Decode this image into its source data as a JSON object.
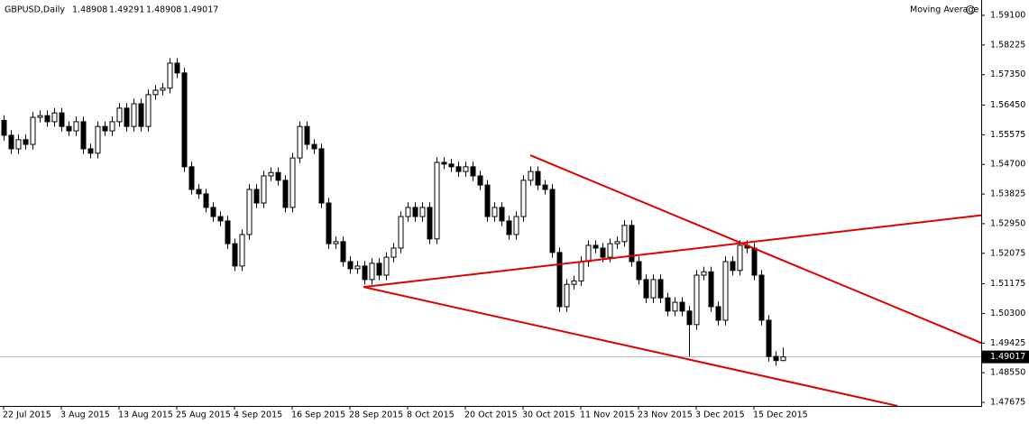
{
  "chart_data": {
    "type": "candlestick",
    "title": "GBPUSD,Daily",
    "header_ohlc": [
      1.48908,
      1.49291,
      1.48908,
      1.49017
    ],
    "indicator": "Moving Average",
    "categories": [
      "22 Jul 2015",
      null,
      null,
      null,
      null,
      null,
      null,
      null,
      "3 Aug 2015",
      null,
      null,
      null,
      null,
      null,
      null,
      null,
      "13 Aug 2015",
      null,
      null,
      null,
      null,
      null,
      null,
      null,
      "25 Aug 2015",
      null,
      null,
      null,
      null,
      null,
      null,
      null,
      "4 Sep 2015",
      null,
      null,
      null,
      null,
      null,
      null,
      null,
      "16 Sep 2015",
      null,
      null,
      null,
      null,
      null,
      null,
      null,
      "28 Sep 2015",
      null,
      null,
      null,
      null,
      null,
      null,
      null,
      "8 Oct 2015",
      null,
      null,
      null,
      null,
      null,
      null,
      null,
      "20 Oct 2015",
      null,
      null,
      null,
      null,
      null,
      null,
      null,
      "30 Oct 2015",
      null,
      null,
      null,
      null,
      null,
      null,
      null,
      "11 Nov 2015",
      null,
      null,
      null,
      null,
      null,
      null,
      null,
      "23 Nov 2015",
      null,
      null,
      null,
      null,
      null,
      null,
      null,
      "3 Dec 2015",
      null,
      null,
      null,
      null,
      null,
      null,
      null,
      "15 Dec 2015",
      null,
      null,
      null,
      null
    ],
    "open": [
      1.56,
      1.5556,
      1.5516,
      1.5543,
      1.5529,
      1.5609,
      1.5614,
      1.5596,
      1.5622,
      1.5582,
      1.5569,
      1.5596,
      1.5516,
      1.5503,
      1.5582,
      1.5569,
      1.5596,
      1.5636,
      1.5582,
      1.5649,
      1.5582,
      1.5676,
      1.5689,
      1.5695,
      1.5769,
      1.574,
      1.5463,
      1.5396,
      1.5383,
      1.5343,
      1.5316,
      1.5303,
      1.5236,
      1.517,
      1.5263,
      1.5396,
      1.5356,
      1.5436,
      1.5446,
      1.5423,
      1.5343,
      1.5489,
      1.5582,
      1.5529,
      1.5516,
      1.5356,
      1.5236,
      1.5242,
      1.5183,
      1.5162,
      1.517,
      1.513,
      1.5178,
      1.5143,
      1.5196,
      1.5223,
      1.5316,
      1.5343,
      1.5316,
      1.5343,
      1.525,
      1.5476,
      1.5471,
      1.5463,
      1.5449,
      1.5463,
      1.5436,
      1.5409,
      1.5316,
      1.5343,
      1.5303,
      1.5263,
      1.5316,
      1.5423,
      1.5449,
      1.5409,
      1.5396,
      1.521,
      1.505,
      1.5116,
      1.5126,
      1.5183,
      1.5231,
      1.5223,
      1.5196,
      1.5236,
      1.5242,
      1.529,
      1.5183,
      1.513,
      1.5076,
      1.513,
      1.5076,
      1.5037,
      1.5063,
      1.5037,
      1.4997,
      1.5143,
      1.5153,
      1.505,
      1.501,
      1.5183,
      1.5157,
      1.5231,
      1.5223,
      1.5143,
      1.501,
      1.4903,
      1.48908
    ],
    "high": [
      1.5615,
      1.5571,
      1.5558,
      1.5558,
      1.5624,
      1.5629,
      1.5629,
      1.5637,
      1.5637,
      1.5597,
      1.5611,
      1.5611,
      1.5531,
      1.5597,
      1.5597,
      1.5611,
      1.5651,
      1.5651,
      1.5664,
      1.5664,
      1.5691,
      1.5704,
      1.571,
      1.5784,
      1.5784,
      1.5755,
      1.5478,
      1.5411,
      1.5398,
      1.5358,
      1.5331,
      1.5318,
      1.5251,
      1.5278,
      1.5411,
      1.5411,
      1.5451,
      1.5461,
      1.5461,
      1.5438,
      1.5504,
      1.5597,
      1.5597,
      1.5544,
      1.5531,
      1.5371,
      1.5257,
      1.5257,
      1.5198,
      1.5185,
      1.5185,
      1.5193,
      1.5193,
      1.5211,
      1.5238,
      1.5331,
      1.5358,
      1.5358,
      1.5358,
      1.5358,
      1.5491,
      1.5491,
      1.5486,
      1.5478,
      1.5478,
      1.5478,
      1.5451,
      1.5424,
      1.5358,
      1.5358,
      1.5318,
      1.5331,
      1.5438,
      1.5464,
      1.5464,
      1.5424,
      1.5411,
      1.5225,
      1.5131,
      1.5141,
      1.5198,
      1.5246,
      1.5246,
      1.5238,
      1.5251,
      1.5257,
      1.5305,
      1.5305,
      1.5198,
      1.5145,
      1.5145,
      1.5145,
      1.5091,
      1.5078,
      1.5078,
      1.5052,
      1.5158,
      1.5168,
      1.5168,
      1.5065,
      1.5198,
      1.5198,
      1.5246,
      1.5246,
      1.5238,
      1.5158,
      1.5025,
      1.4918,
      1.49291
    ],
    "low": [
      1.5541,
      1.5501,
      1.5501,
      1.5514,
      1.5514,
      1.5594,
      1.5581,
      1.5581,
      1.5567,
      1.5554,
      1.5554,
      1.5501,
      1.5488,
      1.5488,
      1.5554,
      1.5554,
      1.5581,
      1.5567,
      1.5567,
      1.5567,
      1.5567,
      1.5661,
      1.5674,
      1.568,
      1.5725,
      1.5448,
      1.5381,
      1.5368,
      1.5328,
      1.5301,
      1.5288,
      1.5221,
      1.5155,
      1.5155,
      1.5248,
      1.5341,
      1.5341,
      1.5421,
      1.5408,
      1.5328,
      1.5328,
      1.5474,
      1.5514,
      1.5501,
      1.5341,
      1.5221,
      1.5221,
      1.5168,
      1.5147,
      1.5147,
      1.5115,
      1.5115,
      1.5128,
      1.5128,
      1.5181,
      1.5208,
      1.5301,
      1.5301,
      1.5301,
      1.5235,
      1.5235,
      1.5456,
      1.5448,
      1.5434,
      1.5434,
      1.5421,
      1.5394,
      1.5301,
      1.5301,
      1.5288,
      1.5248,
      1.5248,
      1.5301,
      1.5408,
      1.5394,
      1.5381,
      1.5195,
      1.5035,
      1.5035,
      1.5101,
      1.5111,
      1.5168,
      1.5208,
      1.5181,
      1.5181,
      1.5221,
      1.5227,
      1.5168,
      1.5115,
      1.5061,
      1.5061,
      1.5061,
      1.5022,
      1.5022,
      1.5022,
      1.4903,
      1.4982,
      1.5128,
      1.5035,
      1.4995,
      1.4995,
      1.5142,
      1.5142,
      1.5208,
      1.5128,
      1.4995,
      1.4888,
      1.4876,
      1.48908
    ],
    "close": [
      1.5556,
      1.5516,
      1.5543,
      1.5529,
      1.5609,
      1.5614,
      1.5596,
      1.5622,
      1.5582,
      1.5569,
      1.5596,
      1.5516,
      1.5503,
      1.5582,
      1.5569,
      1.5596,
      1.5636,
      1.5582,
      1.5649,
      1.5582,
      1.5676,
      1.5689,
      1.5695,
      1.5769,
      1.574,
      1.5463,
      1.5396,
      1.5383,
      1.5343,
      1.5316,
      1.5303,
      1.5236,
      1.517,
      1.5263,
      1.5396,
      1.5356,
      1.5436,
      1.5446,
      1.5423,
      1.5343,
      1.5489,
      1.5582,
      1.5529,
      1.5516,
      1.5356,
      1.5236,
      1.5242,
      1.5183,
      1.5162,
      1.517,
      1.513,
      1.5178,
      1.5143,
      1.5196,
      1.5223,
      1.5316,
      1.5343,
      1.5316,
      1.5343,
      1.525,
      1.5476,
      1.5471,
      1.5463,
      1.5449,
      1.5463,
      1.5436,
      1.5409,
      1.5316,
      1.5343,
      1.5303,
      1.5263,
      1.5316,
      1.5423,
      1.5449,
      1.5409,
      1.5396,
      1.521,
      1.505,
      1.5116,
      1.5126,
      1.5183,
      1.5231,
      1.5223,
      1.5196,
      1.5236,
      1.5242,
      1.529,
      1.5183,
      1.513,
      1.5076,
      1.513,
      1.5076,
      1.5037,
      1.5063,
      1.5037,
      1.4997,
      1.5143,
      1.5153,
      1.505,
      1.501,
      1.5183,
      1.5157,
      1.5231,
      1.5223,
      1.5143,
      1.501,
      1.4903,
      1.48908,
      1.49017
    ],
    "last_price": 1.49017,
    "trendlines": [
      {
        "x": [
          73,
          136.4
        ],
        "y": [
          1.5497,
          1.4935
        ],
        "color": "#e00000"
      },
      {
        "x": [
          49.9,
          136.4
        ],
        "y": [
          1.5108,
          1.5322
        ],
        "color": "#e00000"
      },
      {
        "x": [
          49.9,
          123.9
        ],
        "y": [
          1.5108,
          1.4757
        ],
        "color": "#e00000"
      }
    ],
    "ylim": [
      1.47569,
      1.59553
    ],
    "yticks": [
      {
        "value": 1.591,
        "label": "1.59100"
      },
      {
        "value": 1.58225,
        "label": "1.58225"
      },
      {
        "value": 1.5735,
        "label": "1.57350"
      },
      {
        "value": 1.5645,
        "label": "1.56450"
      },
      {
        "value": 1.55575,
        "label": "1.55575"
      },
      {
        "value": 1.547,
        "label": "1.54700"
      },
      {
        "value": 1.53825,
        "label": "1.53825"
      },
      {
        "value": 1.5295,
        "label": "1.52950"
      },
      {
        "value": 1.52075,
        "label": "1.52075"
      },
      {
        "value": 1.51175,
        "label": "1.51175"
      },
      {
        "value": 1.503,
        "label": "1.50300"
      },
      {
        "value": 1.49425,
        "label": "1.49425"
      },
      {
        "value": 1.4855,
        "label": "1.48550"
      },
      {
        "value": 1.47675,
        "label": "1.47675"
      }
    ]
  }
}
